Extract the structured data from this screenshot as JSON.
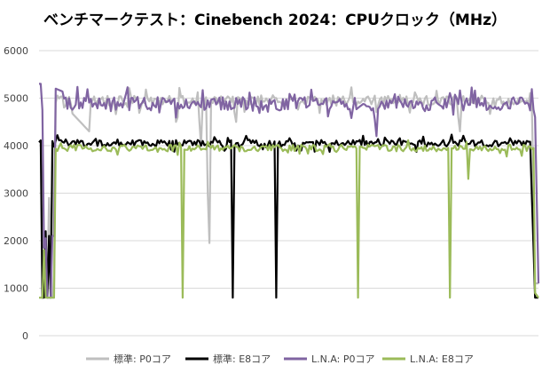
{
  "chart_data": {
    "type": "line",
    "title": "ベンチマークテスト：Cinebench 2024：CPUクロック（MHz）",
    "xlabel": "",
    "ylabel": "",
    "ylim": [
      0,
      6000
    ],
    "yticks": [
      0,
      1000,
      2000,
      3000,
      4000,
      5000,
      6000
    ],
    "grid": true,
    "legend_position": "bottom",
    "x_count": 300,
    "series": [
      {
        "name": "標準: P0コア",
        "color": "#bfbfbf",
        "baseline": 4950,
        "noise": 110,
        "points": [
          [
            0,
            800
          ],
          [
            2,
            800
          ],
          [
            3,
            1100
          ],
          [
            5,
            1100
          ],
          [
            6,
            2900
          ],
          [
            8,
            800
          ],
          [
            9,
            800
          ],
          [
            10,
            5050
          ],
          [
            30,
            4300
          ],
          [
            31,
            5000
          ],
          [
            80,
            5000
          ],
          [
            82,
            4500
          ],
          [
            83,
            4600
          ],
          [
            84,
            5000
          ],
          [
            95,
            5000
          ],
          [
            97,
            4000
          ],
          [
            98,
            5000
          ],
          [
            100,
            5000
          ],
          [
            101,
            3000
          ],
          [
            102,
            1950
          ],
          [
            103,
            4900
          ],
          [
            115,
            4900
          ],
          [
            117,
            4700
          ],
          [
            118,
            4500
          ],
          [
            119,
            5000
          ],
          [
            150,
            5000
          ],
          [
            152,
            4900
          ],
          [
            250,
            4900
          ],
          [
            252,
            4300
          ],
          [
            253,
            5000
          ],
          [
            295,
            5000
          ],
          [
            297,
            1100
          ],
          [
            299,
            1100
          ]
        ]
      },
      {
        "name": "標準: E8コア",
        "color": "#000000",
        "baseline": 4050,
        "noise": 70,
        "points": [
          [
            0,
            3900
          ],
          [
            1,
            3900
          ],
          [
            2,
            800
          ],
          [
            3,
            800
          ],
          [
            4,
            2200
          ],
          [
            5,
            800
          ],
          [
            6,
            2100
          ],
          [
            7,
            800
          ],
          [
            8,
            4100
          ],
          [
            115,
            4100
          ],
          [
            116,
            800
          ],
          [
            117,
            4050
          ],
          [
            141,
            4050
          ],
          [
            142,
            800
          ],
          [
            143,
            4050
          ],
          [
            290,
            4050
          ],
          [
            292,
            4100
          ],
          [
            294,
            4050
          ],
          [
            297,
            800
          ],
          [
            299,
            800
          ]
        ]
      },
      {
        "name": "L.N.A: P0コア",
        "color": "#8064a2",
        "baseline": 4880,
        "noise": 140,
        "points": [
          [
            0,
            5300
          ],
          [
            1,
            5300
          ],
          [
            2,
            4950
          ],
          [
            3,
            1850
          ],
          [
            4,
            2050
          ],
          [
            5,
            800
          ],
          [
            7,
            800
          ],
          [
            8,
            2100
          ],
          [
            9,
            2100
          ],
          [
            10,
            5200
          ],
          [
            30,
            4900
          ],
          [
            60,
            4900
          ],
          [
            62,
            5100
          ],
          [
            64,
            4900
          ],
          [
            200,
            4900
          ],
          [
            202,
            4200
          ],
          [
            203,
            4950
          ],
          [
            295,
            4950
          ],
          [
            297,
            4600
          ],
          [
            299,
            1100
          ]
        ]
      },
      {
        "name": "L.N.A: E8コア",
        "color": "#9bbb59",
        "baseline": 3950,
        "noise": 70,
        "points": [
          [
            0,
            800
          ],
          [
            2,
            800
          ],
          [
            3,
            1800
          ],
          [
            4,
            800
          ],
          [
            9,
            800
          ],
          [
            10,
            4150
          ],
          [
            11,
            4050
          ],
          [
            14,
            4000
          ],
          [
            85,
            4000
          ],
          [
            86,
            800
          ],
          [
            87,
            4000
          ],
          [
            190,
            4000
          ],
          [
            191,
            800
          ],
          [
            192,
            4000
          ],
          [
            245,
            4000
          ],
          [
            246,
            800
          ],
          [
            247,
            4000
          ],
          [
            256,
            4000
          ],
          [
            257,
            3300
          ],
          [
            258,
            4000
          ],
          [
            294,
            4000
          ],
          [
            296,
            3950
          ],
          [
            297,
            900
          ],
          [
            299,
            800
          ]
        ]
      }
    ]
  }
}
